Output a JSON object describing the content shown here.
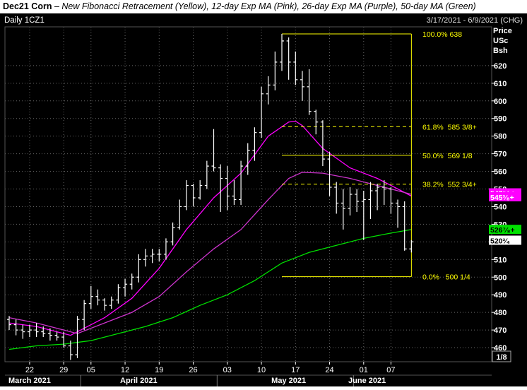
{
  "header": {
    "title": "Dec21 Corn",
    "dash": " – ",
    "subtitle": "New Fibonacci Retracement (Yellow), 12-day Exp MA (Pink), 26-day Exp MA (Purple), 50-day MA (Green)"
  },
  "panel": {
    "symbol": "Daily 1CZ1",
    "date_range": "3/17/2021 - 6/9/2021 (CHG)",
    "axis_title_1": "Price",
    "axis_title_2": "USc",
    "axis_title_3": "Bsh",
    "corner_box": "1/8"
  },
  "colors": {
    "background": "#000000",
    "bars": "#ffffff",
    "fibonacci": "#ffff00",
    "ema12": "#ff00ff",
    "ema26": "#cc33cc",
    "ma50": "#00e000",
    "grid": "#666666"
  },
  "chart_data": {
    "type": "ohlc",
    "ylim": [
      452,
      642
    ],
    "y_ticks": [
      460,
      470,
      480,
      490,
      500,
      510,
      520,
      530,
      540,
      550,
      560,
      570,
      580,
      590,
      600,
      610,
      620
    ],
    "y_tick_labels": [
      "460",
      "470",
      "480",
      "490",
      "500",
      "510",
      "520",
      "530",
      "540",
      "550",
      "560",
      "570",
      "580",
      "590",
      "600",
      "610",
      "620"
    ],
    "x_tick_labels": [
      "22",
      "29",
      "05",
      "12",
      "19",
      "26",
      "03",
      "10",
      "17",
      "24",
      "01",
      "07"
    ],
    "x_tick_trade_index": [
      3,
      8,
      12,
      17,
      22,
      27,
      32,
      37,
      42,
      47,
      52,
      56
    ],
    "months": [
      {
        "label": "March 2021",
        "trade_index": 3
      },
      {
        "label": "April 2021",
        "trade_index": 19
      },
      {
        "label": "May 2021",
        "trade_index": 41
      },
      {
        "label": "June 2021",
        "trade_index": 52.5
      }
    ],
    "month_separators_trade_index": [
      10.5,
      30.5,
      50.5
    ],
    "bars": [
      {
        "o": 476,
        "h": 478,
        "l": 470,
        "c": 473
      },
      {
        "o": 473,
        "h": 476,
        "l": 467,
        "c": 470
      },
      {
        "o": 470,
        "h": 473,
        "l": 465,
        "c": 469
      },
      {
        "o": 469,
        "h": 473,
        "l": 466,
        "c": 470
      },
      {
        "o": 470,
        "h": 474,
        "l": 466,
        "c": 469
      },
      {
        "o": 469,
        "h": 472,
        "l": 466,
        "c": 468
      },
      {
        "o": 468,
        "h": 471,
        "l": 464,
        "c": 467
      },
      {
        "o": 467,
        "h": 469,
        "l": 464,
        "c": 466
      },
      {
        "o": 466,
        "h": 469,
        "l": 460,
        "c": 461
      },
      {
        "o": 461,
        "h": 464,
        "l": 453,
        "c": 456
      },
      {
        "o": 456,
        "h": 478,
        "l": 454,
        "c": 476
      },
      {
        "o": 476,
        "h": 487,
        "l": 470,
        "c": 485
      },
      {
        "o": 485,
        "h": 495,
        "l": 482,
        "c": 489
      },
      {
        "o": 489,
        "h": 493,
        "l": 484,
        "c": 487
      },
      {
        "o": 487,
        "h": 488,
        "l": 481,
        "c": 484
      },
      {
        "o": 484,
        "h": 489,
        "l": 482,
        "c": 487
      },
      {
        "o": 487,
        "h": 496,
        "l": 485,
        "c": 494
      },
      {
        "o": 494,
        "h": 499,
        "l": 489,
        "c": 496
      },
      {
        "o": 496,
        "h": 502,
        "l": 493,
        "c": 500
      },
      {
        "o": 500,
        "h": 513,
        "l": 497,
        "c": 510
      },
      {
        "o": 510,
        "h": 516,
        "l": 506,
        "c": 512
      },
      {
        "o": 512,
        "h": 516,
        "l": 508,
        "c": 513
      },
      {
        "o": 513,
        "h": 516,
        "l": 509,
        "c": 513
      },
      {
        "o": 513,
        "h": 522,
        "l": 510,
        "c": 520
      },
      {
        "o": 520,
        "h": 531,
        "l": 518,
        "c": 528
      },
      {
        "o": 528,
        "h": 544,
        "l": 527,
        "c": 540
      },
      {
        "o": 540,
        "h": 555,
        "l": 538,
        "c": 552
      },
      {
        "o": 552,
        "h": 553,
        "l": 540,
        "c": 545
      },
      {
        "o": 545,
        "h": 555,
        "l": 544,
        "c": 552
      },
      {
        "o": 552,
        "h": 566,
        "l": 550,
        "c": 563
      },
      {
        "o": 563,
        "h": 584,
        "l": 560,
        "c": 562
      },
      {
        "o": 562,
        "h": 564,
        "l": 537,
        "c": 556
      },
      {
        "o": 556,
        "h": 563,
        "l": 538,
        "c": 546
      },
      {
        "o": 546,
        "h": 555,
        "l": 541,
        "c": 544
      },
      {
        "o": 544,
        "h": 566,
        "l": 541,
        "c": 563
      },
      {
        "o": 563,
        "h": 576,
        "l": 558,
        "c": 572
      },
      {
        "o": 572,
        "h": 585,
        "l": 566,
        "c": 582
      },
      {
        "o": 582,
        "h": 608,
        "l": 579,
        "c": 604
      },
      {
        "o": 604,
        "h": 614,
        "l": 598,
        "c": 609
      },
      {
        "o": 609,
        "h": 628,
        "l": 606,
        "c": 622
      },
      {
        "o": 622,
        "h": 638,
        "l": 617,
        "c": 634
      },
      {
        "o": 634,
        "h": 636,
        "l": 612,
        "c": 622
      },
      {
        "o": 622,
        "h": 628,
        "l": 609,
        "c": 612
      },
      {
        "o": 612,
        "h": 617,
        "l": 600,
        "c": 608
      },
      {
        "o": 608,
        "h": 618,
        "l": 592,
        "c": 594
      },
      {
        "o": 594,
        "h": 595,
        "l": 581,
        "c": 588
      },
      {
        "o": 588,
        "h": 589,
        "l": 563,
        "c": 567
      },
      {
        "o": 567,
        "h": 571,
        "l": 546,
        "c": 551
      },
      {
        "o": 551,
        "h": 554,
        "l": 536,
        "c": 542
      },
      {
        "o": 542,
        "h": 550,
        "l": 527,
        "c": 539
      },
      {
        "o": 539,
        "h": 551,
        "l": 535,
        "c": 547
      },
      {
        "o": 547,
        "h": 550,
        "l": 537,
        "c": 543
      },
      {
        "o": 543,
        "h": 549,
        "l": 521,
        "c": 544
      },
      {
        "o": 544,
        "h": 554,
        "l": 533,
        "c": 549
      },
      {
        "o": 549,
        "h": 553,
        "l": 538,
        "c": 551
      },
      {
        "o": 551,
        "h": 555,
        "l": 541,
        "c": 550
      },
      {
        "o": 550,
        "h": 551,
        "l": 536,
        "c": 542
      },
      {
        "o": 542,
        "h": 544,
        "l": 528,
        "c": 540
      },
      {
        "o": 540,
        "h": 543,
        "l": 515,
        "c": 516
      },
      {
        "o": 516,
        "h": 521,
        "l": 514,
        "c": 520
      }
    ],
    "series": [
      {
        "name": "12-day Exp MA (Pink)",
        "color": "#ff00ff",
        "x": [
          0,
          4,
          8,
          9,
          11,
          14,
          18,
          22,
          26,
          30,
          34,
          38,
          41,
          42,
          43,
          46,
          50,
          54,
          57,
          59
        ],
        "values": [
          474,
          472,
          468,
          467,
          471,
          477,
          488,
          505,
          527,
          545,
          559,
          580,
          588,
          588.5,
          586,
          573,
          562,
          556,
          550,
          546
        ]
      },
      {
        "name": "26-day Exp MA (Purple)",
        "color": "#cc33cc",
        "x": [
          0,
          4,
          8,
          10,
          14,
          18,
          22,
          26,
          30,
          34,
          38,
          41,
          43,
          46,
          50,
          54,
          57,
          59
        ],
        "values": [
          477,
          474,
          470,
          468,
          474,
          480,
          489,
          503,
          516,
          527,
          544,
          556,
          559.5,
          559,
          556,
          552,
          549,
          547
        ]
      },
      {
        "name": "50-day MA (Green)",
        "color": "#00e000",
        "x": [
          0,
          4,
          8,
          12,
          16,
          20,
          24,
          28,
          32,
          36,
          40,
          44,
          48,
          52,
          56,
          59
        ],
        "values": [
          459,
          461,
          462,
          464,
          468,
          472,
          477,
          484,
          490,
          498,
          508,
          514,
          518,
          522,
          525,
          527
        ]
      }
    ],
    "fibonacci": {
      "x_start": 40,
      "x_end": 59,
      "levels": [
        {
          "label": "100.0% 638",
          "value": 638,
          "style": "solid"
        },
        {
          "label": "61.8%  585 3/8+",
          "value": 585.375,
          "style": "dashed"
        },
        {
          "label": "50.0%  569 1/8",
          "value": 569.125,
          "style": "solid"
        },
        {
          "label": "38.2%  552 3/4+",
          "value": 552.75,
          "style": "dashed"
        },
        {
          "label": "0.0%   500 1/4",
          "value": 500.25,
          "style": "solid"
        }
      ]
    },
    "price_tags": [
      {
        "text": "547⁵⁄₈+",
        "value": 547.6,
        "bg": "#ff00ff",
        "fg": "#ffffff"
      },
      {
        "text": "545³⁄₈+",
        "value": 545.4,
        "bg": "#ff00ff",
        "fg": "#ffffff"
      },
      {
        "text": "526⁷⁄₈+",
        "value": 526.9,
        "bg": "#00e000",
        "fg": "#000000"
      },
      {
        "text": "520³⁄₄",
        "value": 520.75,
        "bg": "#ffffff",
        "fg": "#000000"
      }
    ]
  }
}
